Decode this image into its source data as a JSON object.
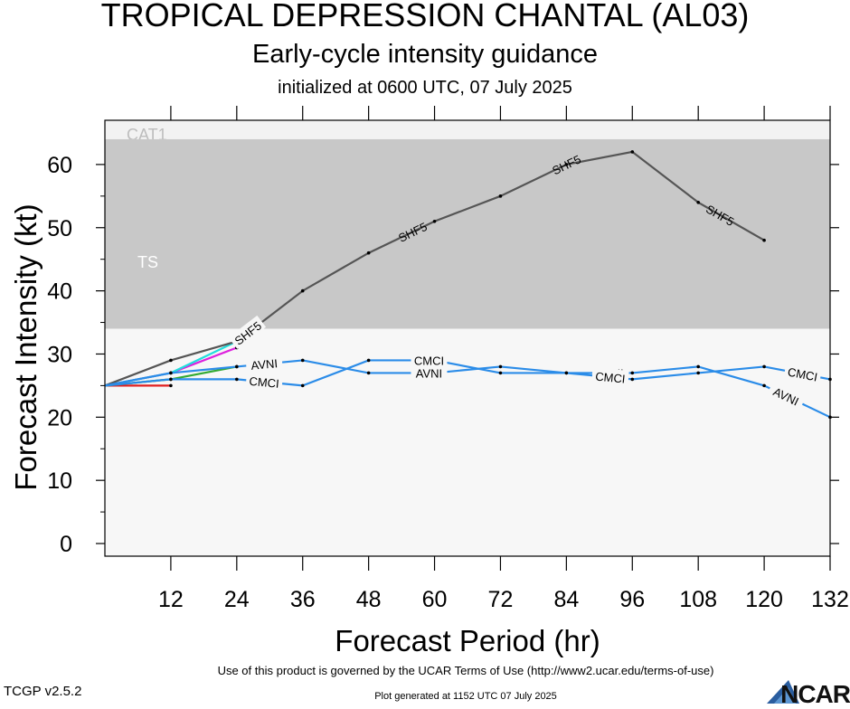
{
  "header": {
    "title": "TROPICAL DEPRESSION CHANTAL (AL03)",
    "subtitle": "Early-cycle intensity guidance",
    "initialized": "initialized at 0600 UTC, 07 July 2025"
  },
  "footer": {
    "terms": "Use of this product is governed by the UCAR Terms of Use (http://www2.ucar.edu/terms-of-use)",
    "version": "TCGP v2.5.2",
    "generated": "Plot generated at 1152 UTC   07 July 2025",
    "logo_text": "NCAR"
  },
  "chart_data": {
    "type": "line",
    "xlabel": "Forecast Period (hr)",
    "ylabel": "Forecast Intensity (kt)",
    "xlim": [
      0,
      132
    ],
    "ylim": [
      -2,
      67
    ],
    "xticks": [
      12,
      24,
      36,
      48,
      60,
      72,
      84,
      96,
      108,
      120,
      132
    ],
    "yticks": [
      0,
      10,
      20,
      30,
      40,
      50,
      60
    ],
    "bands": [
      {
        "label": "CAT1",
        "from": 64,
        "to": 67,
        "color": "#f2f2f2",
        "text_color": "#bdbdbd"
      },
      {
        "label": "TS",
        "from": 34,
        "to": 64,
        "color": "#c8c8c8",
        "text_color": "#ffffff"
      },
      {
        "label": "",
        "from": -2,
        "to": 34,
        "color": "#f7f7f7",
        "text_color": ""
      }
    ],
    "series": [
      {
        "name": "SHF5",
        "color": "#555555",
        "label_positions": [
          26,
          56,
          84,
          112
        ],
        "x": [
          0,
          12,
          24,
          36,
          48,
          60,
          72,
          84,
          96,
          108,
          120
        ],
        "y": [
          25,
          29,
          32,
          40,
          46,
          51,
          55,
          60,
          62,
          54,
          48
        ]
      },
      {
        "name": "AVNI",
        "color": "#2b8ce8",
        "label_positions": [
          29,
          59,
          92,
          124
        ],
        "x": [
          0,
          12,
          24,
          36,
          48,
          60,
          72,
          84,
          96,
          108,
          120,
          132
        ],
        "y": [
          25,
          27,
          28,
          29,
          27,
          27,
          28,
          27,
          27,
          28,
          25,
          20
        ]
      },
      {
        "name": "CMCI",
        "color": "#2b8ce8",
        "label_positions": [
          29,
          59,
          92,
          127
        ],
        "x": [
          0,
          12,
          24,
          36,
          48,
          60,
          72,
          84,
          96,
          108,
          120,
          132
        ],
        "y": [
          25,
          26,
          26,
          25,
          29,
          29,
          27,
          27,
          26,
          27,
          28,
          26
        ]
      },
      {
        "name": "",
        "color": "#e02020",
        "label_positions": [],
        "x": [
          0,
          12
        ],
        "y": [
          25,
          25
        ]
      },
      {
        "name": "",
        "color": "#33aa33",
        "label_positions": [],
        "x": [
          0,
          12,
          24
        ],
        "y": [
          25,
          26,
          28
        ]
      },
      {
        "name": "",
        "color": "#dd22dd",
        "label_positions": [],
        "x": [
          0,
          12,
          24
        ],
        "y": [
          25,
          27,
          31
        ]
      },
      {
        "name": "",
        "color": "#22dddd",
        "label_positions": [],
        "x": [
          0,
          12,
          24
        ],
        "y": [
          25,
          27,
          32
        ]
      }
    ]
  }
}
